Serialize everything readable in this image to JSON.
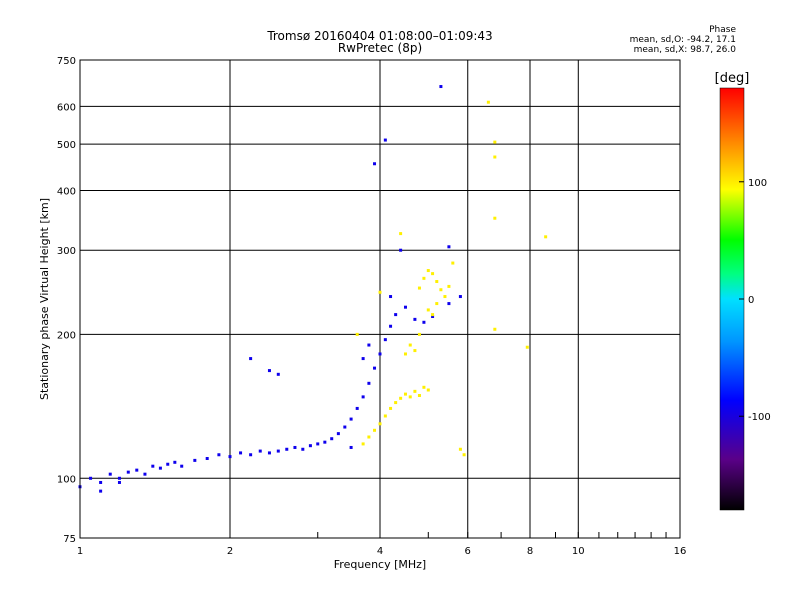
{
  "chart_data": {
    "type": "scatter",
    "title": "Tromsø 20160404 01:08:00–01:09:43",
    "subtitle": "RwPretec (8p)",
    "xlabel": "Frequency [MHz]",
    "ylabel": "Stationary phase Virtual Height [km]",
    "x_scale": "log",
    "y_scale": "log",
    "xlim": [
      1,
      16
    ],
    "ylim": [
      75,
      750
    ],
    "x_ticks": [
      1,
      2,
      4,
      6,
      8,
      10,
      16
    ],
    "y_ticks": [
      75,
      100,
      200,
      300,
      400,
      500,
      600,
      750
    ],
    "grid": true,
    "phase_stats": {
      "title": "Phase",
      "o_mode": "mean, sd,O: -94.2, 17.1",
      "x_mode": "mean, sd,X:  98.7, 26.0"
    },
    "colorbar": {
      "label": "[deg]",
      "ticks": [
        100,
        0,
        -100
      ],
      "range": [
        -180,
        180
      ]
    },
    "series": [
      {
        "mode": "O",
        "phase_mean": -94.2,
        "phase_sd": 17.1,
        "points": [
          [
            1.0,
            96
          ],
          [
            1.05,
            100
          ],
          [
            1.1,
            98
          ],
          [
            1.15,
            102
          ],
          [
            1.2,
            100
          ],
          [
            1.25,
            103
          ],
          [
            1.3,
            104
          ],
          [
            1.35,
            102
          ],
          [
            1.4,
            106
          ],
          [
            1.45,
            105
          ],
          [
            1.5,
            107
          ],
          [
            1.55,
            108
          ],
          [
            1.6,
            106
          ],
          [
            1.7,
            109
          ],
          [
            1.8,
            110
          ],
          [
            1.9,
            112
          ],
          [
            2.0,
            111
          ],
          [
            2.1,
            113
          ],
          [
            2.2,
            112
          ],
          [
            2.3,
            114
          ],
          [
            2.4,
            113
          ],
          [
            2.5,
            114
          ],
          [
            2.6,
            115
          ],
          [
            2.7,
            116
          ],
          [
            2.8,
            115
          ],
          [
            2.9,
            117
          ],
          [
            3.0,
            118
          ],
          [
            3.1,
            119
          ],
          [
            3.2,
            121
          ],
          [
            3.3,
            124
          ],
          [
            3.4,
            128
          ],
          [
            3.5,
            133
          ],
          [
            3.6,
            140
          ],
          [
            3.7,
            148
          ],
          [
            3.8,
            158
          ],
          [
            3.9,
            170
          ],
          [
            4.0,
            182
          ],
          [
            4.1,
            195
          ],
          [
            4.2,
            208
          ],
          [
            4.3,
            220
          ],
          [
            4.5,
            228
          ],
          [
            4.7,
            215
          ],
          [
            4.9,
            212
          ],
          [
            5.1,
            218
          ],
          [
            5.5,
            232
          ],
          [
            5.8,
            240
          ],
          [
            1.1,
            94
          ],
          [
            1.2,
            98
          ],
          [
            2.4,
            168
          ],
          [
            2.5,
            165
          ],
          [
            2.2,
            178
          ],
          [
            3.5,
            116
          ],
          [
            3.7,
            178
          ],
          [
            3.8,
            190
          ],
          [
            4.2,
            240
          ],
          [
            4.4,
            300
          ],
          [
            3.9,
            455
          ],
          [
            4.1,
            510
          ],
          [
            5.3,
            660
          ],
          [
            5.5,
            305
          ]
        ]
      },
      {
        "mode": "X",
        "phase_mean": 98.7,
        "phase_sd": 26.0,
        "points": [
          [
            3.7,
            118
          ],
          [
            3.8,
            122
          ],
          [
            3.9,
            126
          ],
          [
            4.0,
            130
          ],
          [
            4.1,
            135
          ],
          [
            4.2,
            140
          ],
          [
            4.3,
            144
          ],
          [
            4.4,
            147
          ],
          [
            4.5,
            150
          ],
          [
            4.6,
            148
          ],
          [
            4.7,
            152
          ],
          [
            4.8,
            149
          ],
          [
            4.9,
            155
          ],
          [
            5.0,
            153
          ],
          [
            4.6,
            190
          ],
          [
            4.7,
            185
          ],
          [
            4.8,
            200
          ],
          [
            4.5,
            182
          ],
          [
            4.8,
            250
          ],
          [
            4.9,
            262
          ],
          [
            5.0,
            272
          ],
          [
            5.1,
            268
          ],
          [
            5.2,
            258
          ],
          [
            5.3,
            248
          ],
          [
            5.4,
            240
          ],
          [
            5.5,
            252
          ],
          [
            5.6,
            282
          ],
          [
            5.0,
            225
          ],
          [
            5.1,
            220
          ],
          [
            5.2,
            232
          ],
          [
            4.4,
            325
          ],
          [
            5.8,
            115
          ],
          [
            5.9,
            112
          ],
          [
            6.8,
            205
          ],
          [
            6.8,
            470
          ],
          [
            6.8,
            505
          ],
          [
            6.8,
            350
          ],
          [
            7.9,
            188
          ],
          [
            8.6,
            320
          ],
          [
            6.6,
            612
          ],
          [
            4.0,
            245
          ],
          [
            3.6,
            200
          ]
        ]
      }
    ]
  }
}
